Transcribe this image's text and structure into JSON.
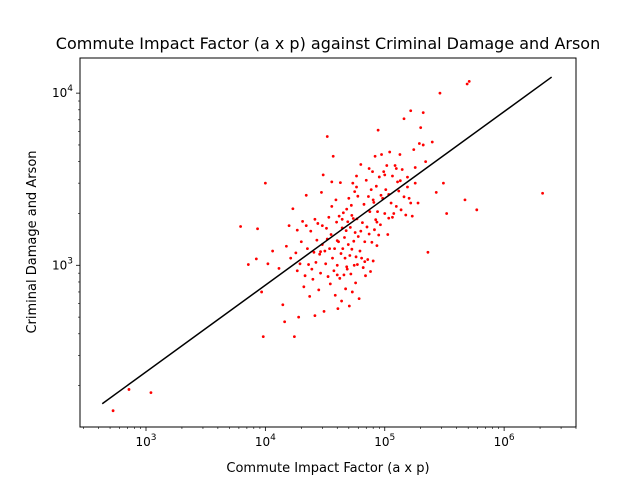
{
  "chart_data": {
    "type": "scatter",
    "title": "Commute Impact Factor (a x p) against Criminal Damage and Arson",
    "xlabel": "Commute Impact Factor (a x p)",
    "ylabel": "Criminal Damage and Arson",
    "xscale": "log",
    "yscale": "log",
    "xlim": [
      280,
      4000000
    ],
    "ylim": [
      115,
      16000
    ],
    "x_ticks": [
      {
        "base": "10",
        "exp": "3",
        "value": 1000
      },
      {
        "base": "10",
        "exp": "4",
        "value": 10000
      },
      {
        "base": "10",
        "exp": "5",
        "value": 100000
      },
      {
        "base": "10",
        "exp": "6",
        "value": 1000000
      }
    ],
    "y_ticks": [
      {
        "base": "10",
        "exp": "3",
        "value": 1000
      },
      {
        "base": "10",
        "exp": "4",
        "value": 10000
      }
    ],
    "grid": false,
    "legend": "none",
    "colors": {
      "points": "#ff0000",
      "fit_line": "#000000"
    },
    "fit_line": {
      "x": [
        430,
        2500000
      ],
      "y": [
        157,
        12400
      ]
    },
    "points": {
      "x": [
        530,
        720,
        1100,
        6200,
        7200,
        8400,
        8600,
        9300,
        9600,
        10000,
        10500,
        11500,
        13000,
        14000,
        14500,
        15000,
        15800,
        16300,
        17000,
        17500,
        18000,
        18500,
        19000,
        19500,
        20000,
        20500,
        21000,
        21500,
        22000,
        22500,
        23000,
        23500,
        24000,
        24500,
        25000,
        25500,
        26000,
        26500,
        27000,
        27500,
        28000,
        28500,
        29000,
        29500,
        30000,
        30500,
        31000,
        31500,
        32000,
        32500,
        33000,
        33500,
        34000,
        34500,
        35000,
        35500,
        36000,
        36500,
        37000,
        37500,
        38000,
        38500,
        39000,
        39500,
        40000,
        40500,
        41000,
        41500,
        42000,
        42500,
        43000,
        43500,
        44000,
        44500,
        45000,
        45500,
        46000,
        46500,
        47000,
        47500,
        48000,
        48500,
        49000,
        49500,
        50000,
        50500,
        51000,
        51500,
        52000,
        52500,
        53000,
        53500,
        54000,
        54500,
        55000,
        55500,
        56000,
        56500,
        57000,
        57500,
        58000,
        58500,
        59000,
        59500,
        60000,
        61000,
        62000,
        63000,
        64000,
        65000,
        66000,
        67000,
        68000,
        69000,
        70000,
        71000,
        72000,
        73000,
        74000,
        75000,
        76000,
        77000,
        78000,
        79000,
        80000,
        81000,
        82000,
        83000,
        84000,
        85000,
        86000,
        87000,
        88000,
        89000,
        90000,
        92000,
        94000,
        96000,
        98000,
        100000,
        102000,
        104000,
        106000,
        108000,
        110000,
        113000,
        116000,
        119000,
        122000,
        125000,
        128000,
        131000,
        134000,
        137000,
        140000,
        145000,
        150000,
        155000,
        160000,
        165000,
        170000,
        175000,
        180000,
        190000,
        200000,
        210000,
        220000,
        230000,
        250000,
        270000,
        290000,
        310000,
        330000,
        470000,
        490000,
        510000,
        590000,
        2100000,
        18500,
        22000,
        26000,
        29000,
        33000,
        36000,
        40000,
        44000,
        48000,
        53000,
        58000,
        63000,
        68000,
        74000,
        80000,
        86000,
        93000,
        100000,
        108000,
        116000,
        125000,
        135000,
        145000,
        155000,
        165000,
        180000,
        195000,
        210000,
        40000,
        30000
      ],
      "y": [
        143,
        190,
        182,
        1680,
        1010,
        1090,
        1630,
        700,
        385,
        3000,
        1020,
        1210,
        960,
        590,
        470,
        1290,
        1700,
        1100,
        2130,
        385,
        1180,
        930,
        500,
        1020,
        1370,
        1800,
        750,
        870,
        1700,
        1250,
        1010,
        660,
        1580,
        950,
        830,
        1190,
        510,
        1040,
        1400,
        1750,
        720,
        1160,
        900,
        2650,
        1320,
        3350,
        540,
        1210,
        1020,
        1640,
        5600,
        860,
        1900,
        1250,
        780,
        1510,
        2200,
        1100,
        4300,
        930,
        1250,
        670,
        2400,
        1780,
        1000,
        560,
        1370,
        1930,
        840,
        3020,
        1170,
        620,
        1650,
        1250,
        2020,
        880,
        1450,
        1100,
        730,
        1590,
        2120,
        950,
        1790,
        1320,
        2450,
        580,
        1140,
        1660,
        890,
        2230,
        1240,
        700,
        3000,
        1870,
        1380,
        1000,
        2680,
        1550,
        790,
        1120,
        3300,
        1860,
        1010,
        2520,
        1470,
        640,
        1210,
        3850,
        1100,
        1770,
        970,
        2260,
        1370,
        870,
        3120,
        1670,
        1080,
        2510,
        1520,
        2050,
        920,
        2750,
        1360,
        3500,
        1060,
        2320,
        1610,
        4300,
        1840,
        2880,
        1300,
        2050,
        6100,
        1500,
        3260,
        1720,
        4400,
        2450,
        3500,
        2000,
        2750,
        3800,
        1510,
        1880,
        4550,
        2300,
        3300,
        2000,
        3800,
        2200,
        3050,
        2700,
        4400,
        2100,
        3600,
        2500,
        1960,
        3250,
        2450,
        7900,
        1930,
        4700,
        3000,
        2300,
        6300,
        5000,
        4000,
        1190,
        5200,
        2650,
        10000,
        3000,
        2000,
        2400,
        11300,
        11700,
        2100,
        2620,
        1600,
        2550,
        1850,
        1200,
        1420,
        3050,
        1390,
        1850,
        980,
        1950,
        2850,
        1580,
        1050,
        3650,
        2400,
        1780,
        2550,
        3350,
        2580,
        1900,
        3650,
        3100,
        7100,
        2850,
        2300,
        3700,
        5100,
        7700,
        880,
        1700
      ]
    }
  }
}
